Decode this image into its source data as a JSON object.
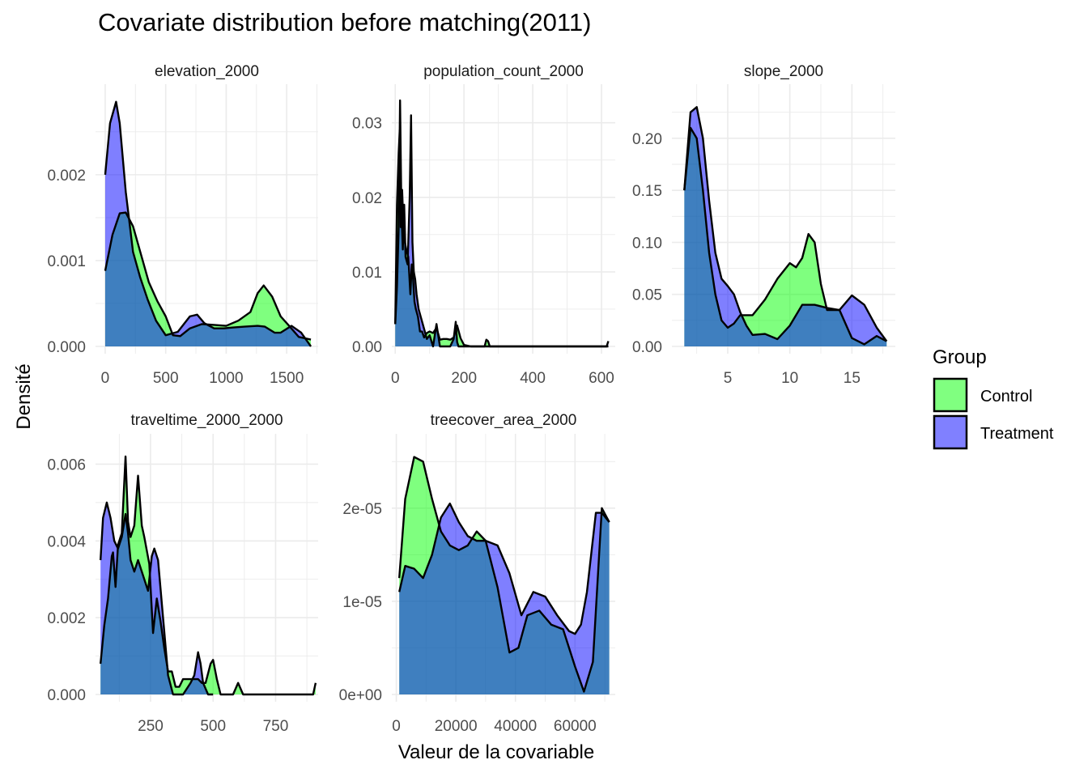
{
  "chart_data": {
    "type": "area",
    "title": "Covariate distribution before matching(2011)",
    "xlabel": "Valeur de la covariable",
    "ylabel": "Densité",
    "grid": true,
    "legend": {
      "title": "Group",
      "placement": "right",
      "entries": [
        {
          "name": "Control",
          "color": "#80ff80"
        },
        {
          "name": "Treatment",
          "color": "#8080ff"
        }
      ]
    },
    "overlap_color": "#3f7fbf",
    "panels": [
      {
        "name": "elevation_2000",
        "xlim": [
          -80,
          1760
        ],
        "ylim": [
          0,
          0.00297
        ],
        "xticks": [
          0,
          500,
          1000,
          1500
        ],
        "xtick_labels": [
          "0",
          "500",
          "1000",
          "1500"
        ],
        "yticks": [
          0,
          0.001,
          0.002
        ],
        "ytick_labels": [
          "0.000",
          "0.001",
          "0.002"
        ],
        "series": [
          {
            "name": "Control",
            "x": [
              0,
              60,
              120,
              170,
              230,
              290,
              360,
              430,
              500,
              560,
              620,
              700,
              800,
              900,
              1000,
              1100,
              1200,
              1260,
              1310,
              1380,
              1450,
              1520,
              1600,
              1700
            ],
            "y": [
              0.00088,
              0.0013,
              0.00155,
              0.00156,
              0.0014,
              0.0011,
              0.00075,
              0.00053,
              0.00035,
              0.00013,
              0.00012,
              0.00021,
              0.00026,
              0.00025,
              0.00024,
              0.0003,
              0.0004,
              0.00062,
              0.00071,
              0.00058,
              0.00035,
              0.00024,
              0.00011,
              8e-05
            ]
          },
          {
            "name": "Treatment",
            "x": [
              0,
              40,
              90,
              120,
              170,
              230,
              290,
              350,
              420,
              500,
              600,
              700,
              760,
              820,
              900,
              980,
              1050,
              1150,
              1260,
              1320,
              1400,
              1450,
              1540,
              1620,
              1700
            ],
            "y": [
              0.002,
              0.0026,
              0.00285,
              0.0026,
              0.0018,
              0.0011,
              0.0008,
              0.00055,
              0.0003,
              0.00013,
              0.00017,
              0.00035,
              0.00037,
              0.00027,
              0.00021,
              0.00021,
              0.00022,
              0.00023,
              0.00024,
              0.00023,
              0.00016,
              0.00016,
              0.00024,
              0.00016,
              0.0
            ]
          }
        ]
      },
      {
        "name": "population_count_2000",
        "xlim": [
          -10,
          640
        ],
        "ylim": [
          0,
          0.0342
        ],
        "xticks": [
          0,
          200,
          400,
          600
        ],
        "xtick_labels": [
          "0",
          "200",
          "400",
          "600"
        ],
        "yticks": [
          0,
          0.01,
          0.02,
          0.03
        ],
        "ytick_labels": [
          "0.00",
          "0.01",
          "0.02",
          "0.03"
        ],
        "series": [
          {
            "name": "Control",
            "x": [
              0,
              5,
              10,
              13,
              16,
              20,
              24,
              28,
              32,
              38,
              44,
              48,
              52,
              56,
              60,
              66,
              72,
              78,
              84,
              92,
              100,
              110,
              120,
              130,
              140,
              150,
              160,
              170,
              180,
              190,
              200,
              220,
              260,
              265,
              270,
              275,
              280,
              620
            ],
            "y": [
              0.003,
              0.019,
              0.026,
              0.029,
              0.016,
              0.021,
              0.016,
              0.014,
              0.013,
              0.012,
              0.007,
              0.011,
              0.009,
              0.006,
              0.005,
              0.004,
              0.002,
              0.002,
              0.0012,
              0.0018,
              0.002,
              0.0018,
              0.0025,
              0.0009,
              0.001,
              0.001,
              0.0009,
              0.0012,
              0.0028,
              0.0011,
              0.0002,
              0.0,
              0.0,
              0.0009,
              0.0007,
              0.0,
              0.0,
              0.0
            ]
          },
          {
            "name": "Treatment",
            "x": [
              0,
              5,
              10,
              14,
              18,
              22,
              26,
              30,
              36,
              42,
              46,
              50,
              54,
              58,
              62,
              68,
              74,
              80,
              86,
              92,
              100,
              110,
              120,
              130,
              140,
              150,
              160,
              170,
              176,
              180,
              184,
              190,
              200,
              300,
              600,
              615,
              620
            ],
            "y": [
              0.003,
              0.008,
              0.016,
              0.033,
              0.018,
              0.013,
              0.019,
              0.012,
              0.011,
              0.02,
              0.031,
              0.014,
              0.01,
              0.009,
              0.007,
              0.005,
              0.004,
              0.003,
              0.002,
              0.001,
              0.0015,
              0.0,
              0.003,
              0.0,
              0.0,
              0.0,
              0.0,
              0.001,
              0.0033,
              0.0006,
              0.0,
              0.0,
              0.0,
              0.0,
              0.0,
              0.0,
              0.0007
            ]
          }
        ]
      },
      {
        "name": "slope_2000",
        "xlim": [
          0.5,
          18.5
        ],
        "ylim": [
          0,
          0.245
        ],
        "xticks": [
          5,
          10,
          15
        ],
        "xtick_labels": [
          "5",
          "10",
          "15"
        ],
        "yticks": [
          0,
          0.05,
          0.1,
          0.15,
          0.2
        ],
        "ytick_labels": [
          "0.00",
          "0.05",
          "0.10",
          "0.15",
          "0.20"
        ],
        "series": [
          {
            "name": "Control",
            "x": [
              1.5,
              2.0,
              2.5,
              3.0,
              3.5,
              4.0,
              4.5,
              5.0,
              5.5,
              6.0,
              7.0,
              8.0,
              9.0,
              10.0,
              10.5,
              11.0,
              11.5,
              12.0,
              12.5,
              13.0,
              14.0,
              15.0,
              16.0,
              17.0,
              17.8
            ],
            "y": [
              0.15,
              0.21,
              0.2,
              0.15,
              0.09,
              0.05,
              0.025,
              0.018,
              0.022,
              0.03,
              0.03,
              0.045,
              0.065,
              0.08,
              0.076,
              0.085,
              0.108,
              0.1,
              0.06,
              0.035,
              0.035,
              0.008,
              0.002,
              0.01,
              0.005
            ]
          },
          {
            "name": "Treatment",
            "x": [
              1.5,
              2.0,
              2.5,
              3.0,
              3.5,
              4.0,
              4.5,
              5.0,
              5.5,
              6.0,
              6.5,
              7.0,
              8.0,
              9.0,
              10.0,
              11.0,
              12.0,
              13.0,
              14.0,
              15.0,
              16.0,
              17.0,
              17.8
            ],
            "y": [
              0.15,
              0.225,
              0.23,
              0.2,
              0.14,
              0.09,
              0.065,
              0.058,
              0.05,
              0.033,
              0.02,
              0.011,
              0.012,
              0.007,
              0.02,
              0.04,
              0.04,
              0.037,
              0.035,
              0.049,
              0.04,
              0.018,
              0.005
            ]
          }
        ]
      },
      {
        "name": "traveltime_2000_2000",
        "xlim": [
          30,
          920
        ],
        "ylim": [
          0,
          0.0066
        ],
        "xticks": [
          250,
          500,
          750
        ],
        "xtick_labels": [
          "250",
          "500",
          "750"
        ],
        "yticks": [
          0,
          0.002,
          0.004,
          0.006
        ],
        "ytick_labels": [
          "0.000",
          "0.002",
          "0.004",
          "0.006"
        ],
        "series": [
          {
            "name": "Control",
            "x": [
              50,
              65,
              80,
              95,
              100,
              110,
              120,
              135,
              150,
              160,
              170,
              185,
              200,
              215,
              225,
              245,
              260,
              275,
              290,
              305,
              320,
              335,
              350,
              365,
              380,
              400,
              420,
              440,
              455,
              470,
              490,
              500,
              515,
              530,
              580,
              600,
              620,
              880,
              900,
              910
            ],
            "y": [
              0.0008,
              0.0018,
              0.0025,
              0.0036,
              0.0037,
              0.0028,
              0.0039,
              0.0042,
              0.0062,
              0.0045,
              0.0041,
              0.0044,
              0.0057,
              0.0044,
              0.0041,
              0.0034,
              0.0016,
              0.0025,
              0.0019,
              0.0012,
              0.0006,
              0.0006,
              0.0002,
              0.0002,
              0.0004,
              0.0004,
              0.0004,
              0.0004,
              0.0003,
              0.0003,
              0.0008,
              0.0009,
              0.0004,
              0.0,
              0.0,
              0.0003,
              0.0,
              0.0,
              0.0,
              0.0003
            ]
          },
          {
            "name": "Treatment",
            "x": [
              50,
              60,
              75,
              90,
              105,
              120,
              135,
              145,
              150,
              160,
              170,
              185,
              200,
              220,
              240,
              255,
              265,
              280,
              300,
              320,
              340,
              360,
              380,
              410,
              425,
              440,
              450,
              460,
              480,
              500
            ],
            "y": [
              0.0035,
              0.0046,
              0.005,
              0.0046,
              0.004,
              0.0038,
              0.0041,
              0.0045,
              0.0047,
              0.0042,
              0.0035,
              0.0032,
              0.0035,
              0.0031,
              0.0027,
              0.0036,
              0.0038,
              0.0035,
              0.002,
              0.0005,
              0.0,
              0.0,
              0.0,
              0.0003,
              0.0005,
              0.0011,
              0.0008,
              0.0003,
              0.0,
              0.0
            ]
          }
        ]
      },
      {
        "name": "treecover_area_2000",
        "xlim": [
          -1500,
          73500
        ],
        "ylim": [
          0,
          2.72e-05
        ],
        "xticks": [
          0,
          20000,
          40000,
          60000
        ],
        "xtick_labels": [
          "0",
          "20000",
          "40000",
          "60000"
        ],
        "yticks": [
          0,
          1e-05,
          2e-05
        ],
        "ytick_labels": [
          "0e+00",
          "1e-05",
          "2e-05"
        ],
        "series": [
          {
            "name": "Control",
            "x": [
              1000,
              3000,
              6000,
              9000,
              12000,
              15000,
              18000,
              21000,
              24000,
              27000,
              30000,
              34000,
              38000,
              41000,
              44000,
              48000,
              52000,
              56000,
              60000,
              63000,
              66000,
              69000,
              71500
            ],
            "y": [
              1.25e-05,
              2.1e-05,
              2.55e-05,
              2.5e-05,
              2.1e-05,
              1.75e-05,
              1.6e-05,
              1.55e-05,
              1.6e-05,
              1.75e-05,
              1.65e-05,
              1.15e-05,
              4.5e-06,
              5e-06,
              8.5e-06,
              9e-06,
              7.5e-06,
              7e-06,
              3e-06,
              3e-07,
              3.5e-06,
              2e-05,
              1.85e-05
            ]
          },
          {
            "name": "Treatment",
            "x": [
              1000,
              3000,
              6000,
              9000,
              12000,
              15000,
              18000,
              21000,
              24000,
              27000,
              30000,
              34000,
              38000,
              42000,
              46000,
              50000,
              54000,
              58000,
              60000,
              62000,
              64000,
              67000,
              69000,
              71500
            ],
            "y": [
              1.1e-05,
              1.38e-05,
              1.35e-05,
              1.25e-05,
              1.5e-05,
              1.9e-05,
              2.05e-05,
              1.85e-05,
              1.7e-05,
              1.65e-05,
              1.65e-05,
              1.6e-05,
              1.3e-05,
              8.5e-06,
              1.1e-05,
              1.05e-05,
              8.5e-06,
              6.8e-06,
              6.5e-06,
              7.5e-06,
              1.1e-05,
              1.95e-05,
              1.95e-05,
              1.85e-05
            ]
          }
        ]
      }
    ]
  }
}
